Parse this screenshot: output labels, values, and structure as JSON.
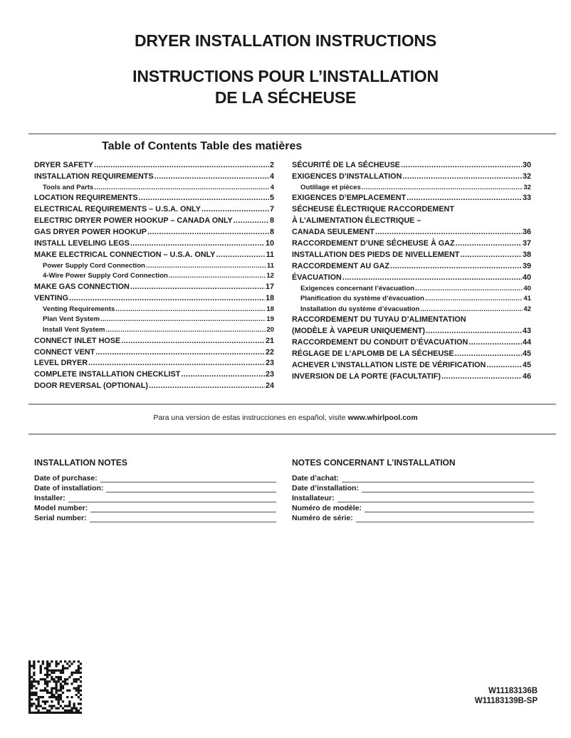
{
  "title": {
    "line1": "DRYER INSTALLATION INSTRUCTIONS",
    "line2": "INSTRUCTIONS POUR L’INSTALLATION",
    "line3": "DE LA SÉCHEUSE"
  },
  "toc": {
    "heading": "Table of Contents  Table des matières",
    "left": [
      {
        "label": "DRYER SAFETY",
        "page": "2"
      },
      {
        "label": "INSTALLATION REQUIREMENTS",
        "page": "4"
      },
      {
        "label": "Tools and Parts",
        "page": "4",
        "sub": true
      },
      {
        "label": "LOCATION REQUIREMENTS",
        "page": "5"
      },
      {
        "label": "ELECTRICAL REQUIREMENTS – U.S.A. ONLY",
        "page": "7"
      },
      {
        "label": "ELECTRIC DRYER POWER HOOKUP – CANADA ONLY",
        "page": "8"
      },
      {
        "label": "GAS DRYER POWER HOOKUP",
        "page": "8"
      },
      {
        "label": "INSTALL LEVELING LEGS",
        "page": "10"
      },
      {
        "label": "MAKE ELECTRICAL CONNECTION – U.S.A. ONLY",
        "page": "11"
      },
      {
        "label": "Power Supply Cord Connection",
        "page": "11",
        "sub": true
      },
      {
        "label": "4-Wire Power Supply Cord Connection",
        "page": "12",
        "sub": true
      },
      {
        "label": "MAKE GAS CONNECTION",
        "page": "17"
      },
      {
        "label": "VENTING",
        "page": "18"
      },
      {
        "label": "Venting Requirements",
        "page": "18",
        "sub": true
      },
      {
        "label": "Plan Vent System",
        "page": "19",
        "sub": true
      },
      {
        "label": "Install Vent System",
        "page": "20",
        "sub": true
      },
      {
        "label": "CONNECT INLET HOSE",
        "page": "21"
      },
      {
        "label": "CONNECT VENT",
        "page": "22"
      },
      {
        "label": "LEVEL DRYER",
        "page": "23"
      },
      {
        "label": "COMPLETE INSTALLATION CHECKLIST",
        "page": "23"
      },
      {
        "label": "DOOR REVERSAL (OPTIONAL)",
        "page": "24"
      }
    ],
    "right": [
      {
        "label": "SÉCURITÉ DE LA SÉCHEUSE",
        "page": "30"
      },
      {
        "label": "EXIGENCES D’INSTALLATION",
        "page": "32"
      },
      {
        "label": "Outillage et pièces",
        "page": "32",
        "sub": true
      },
      {
        "label": "EXIGENCES D’EMPLACEMENT",
        "page": "33"
      },
      {
        "label": "SÉCHEUSE ÉLECTRIQUE RACCORDEMENT"
      },
      {
        "label": "À L’ALIMENTATION ÉLECTRIQUE –"
      },
      {
        "label": "CANADA SEULEMENT",
        "page": "36"
      },
      {
        "label": "RACCORDEMENT D’UNE SÉCHEUSE À GAZ",
        "page": "37"
      },
      {
        "label": "INSTALLATION DES PIEDS DE NIVELLEMENT",
        "page": "38"
      },
      {
        "label": "RACCORDEMENT AU GAZ",
        "page": "39"
      },
      {
        "label": "ÉVACUATION",
        "page": "40"
      },
      {
        "label": "Exigences concernant l’évacuation",
        "page": "40",
        "sub": true
      },
      {
        "label": "Planification du système d’évacuation",
        "page": "41",
        "sub": true
      },
      {
        "label": "Installation du système d’évacuation",
        "page": "42",
        "sub": true
      },
      {
        "label": "RACCORDEMENT DU TUYAU D’ALIMENTATION"
      },
      {
        "label": "(MODÈLE À VAPEUR UNIQUEMENT)",
        "page": "43"
      },
      {
        "label": "RACCORDEMENT DU CONDUIT D’ÉVACUATION",
        "page": "44"
      },
      {
        "label": "RÉGLAGE DE L’APLOMB DE LA SÉCHEUSE",
        "page": "45"
      },
      {
        "label": "ACHEVER L’INSTALLATION LISTE DE VÉRIFICATION",
        "page": "45"
      },
      {
        "label": "INVERSION DE LA PORTE (FACULTATIF)",
        "page": "46"
      }
    ]
  },
  "spanish": {
    "text": "Para una version de estas instrucciones en español, visite ",
    "url": "www.whirlpool.com"
  },
  "notes_en": {
    "heading": "INSTALLATION NOTES",
    "fields": [
      "Date of purchase:",
      "Date of installation:",
      "Installer:",
      "Model number:",
      "Serial number:"
    ]
  },
  "notes_fr": {
    "heading": "NOTES CONCERNANT L’INSTALLATION",
    "fields": [
      "Date d’achat:",
      "Date d’installation:",
      "Installateur:",
      "Numéro de modèle:",
      "Numéro de série:"
    ]
  },
  "part_numbers": [
    "W11183136B",
    "W11183139B-SP"
  ]
}
